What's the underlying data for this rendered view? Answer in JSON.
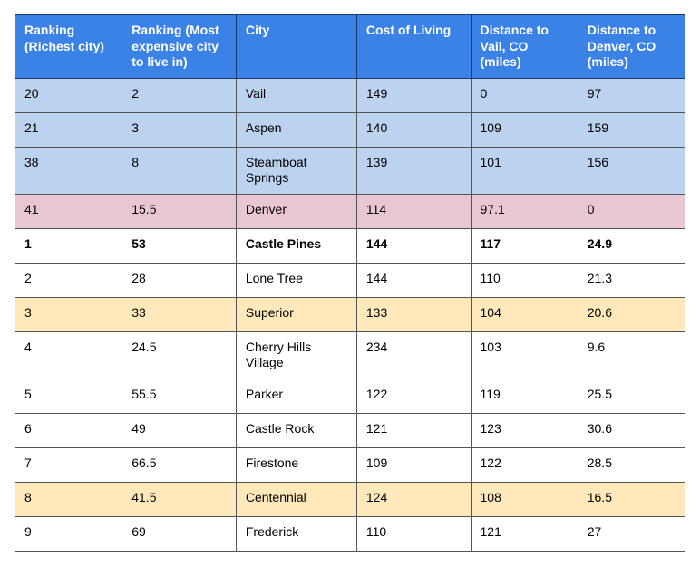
{
  "colors": {
    "header_bg": "#3b82e6",
    "header_text": "#ffffff",
    "header_border": "#1a3a6e",
    "cell_border": "#555555",
    "blue_row": "#bcd3f0",
    "pink_row": "#e9c7d2",
    "cream_row": "#ffe9ba",
    "plain_row": "#ffffff"
  },
  "typography": {
    "font_family": "Arial, Helvetica, sans-serif",
    "font_size_pt": 10.5,
    "header_font_weight": "bold"
  },
  "table": {
    "column_widths_pct": [
      16,
      17,
      18,
      17,
      16,
      16
    ],
    "columns": [
      "Ranking (Richest city)",
      "Ranking (Most expensive city to live in)",
      "City",
      "Cost of Living",
      "Distance to Vail, CO (miles)",
      "Distance to Denver, CO (miles)"
    ],
    "rows": [
      {
        "style": "blue",
        "cells": [
          "20",
          "2",
          "Vail",
          "149",
          "0",
          "97"
        ]
      },
      {
        "style": "blue",
        "cells": [
          "21",
          "3",
          "Aspen",
          "140",
          "109",
          "159"
        ]
      },
      {
        "style": "blue",
        "cells": [
          "38",
          "8",
          "Steamboat Springs",
          "139",
          "101",
          "156"
        ]
      },
      {
        "style": "pink",
        "cells": [
          "41",
          "15.5",
          "Denver",
          "114",
          "97.1",
          "0"
        ]
      },
      {
        "style": "bold",
        "cells": [
          "1",
          "53",
          "Castle Pines",
          "144",
          "117",
          "24.9"
        ]
      },
      {
        "style": "plain",
        "cells": [
          "2",
          "28",
          "Lone Tree",
          "144",
          "110",
          "21.3"
        ]
      },
      {
        "style": "cream",
        "cells": [
          "3",
          "33",
          "Superior",
          "133",
          "104",
          "20.6"
        ]
      },
      {
        "style": "plain",
        "cells": [
          "4",
          "24.5",
          "Cherry Hills Village",
          "234",
          "103",
          "9.6"
        ]
      },
      {
        "style": "plain",
        "cells": [
          "5",
          "55.5",
          "Parker",
          "122",
          "119",
          "25.5"
        ]
      },
      {
        "style": "plain",
        "cells": [
          "6",
          "49",
          "Castle Rock",
          "121",
          "123",
          "30.6"
        ]
      },
      {
        "style": "plain",
        "cells": [
          "7",
          "66.5",
          "Firestone",
          "109",
          "122",
          "28.5"
        ]
      },
      {
        "style": "cream",
        "cells": [
          "8",
          "41.5",
          "Centennial",
          "124",
          "108",
          "16.5"
        ]
      },
      {
        "style": "plain",
        "cells": [
          "9",
          "69",
          "Frederick",
          "110",
          "121",
          "27"
        ]
      }
    ]
  }
}
